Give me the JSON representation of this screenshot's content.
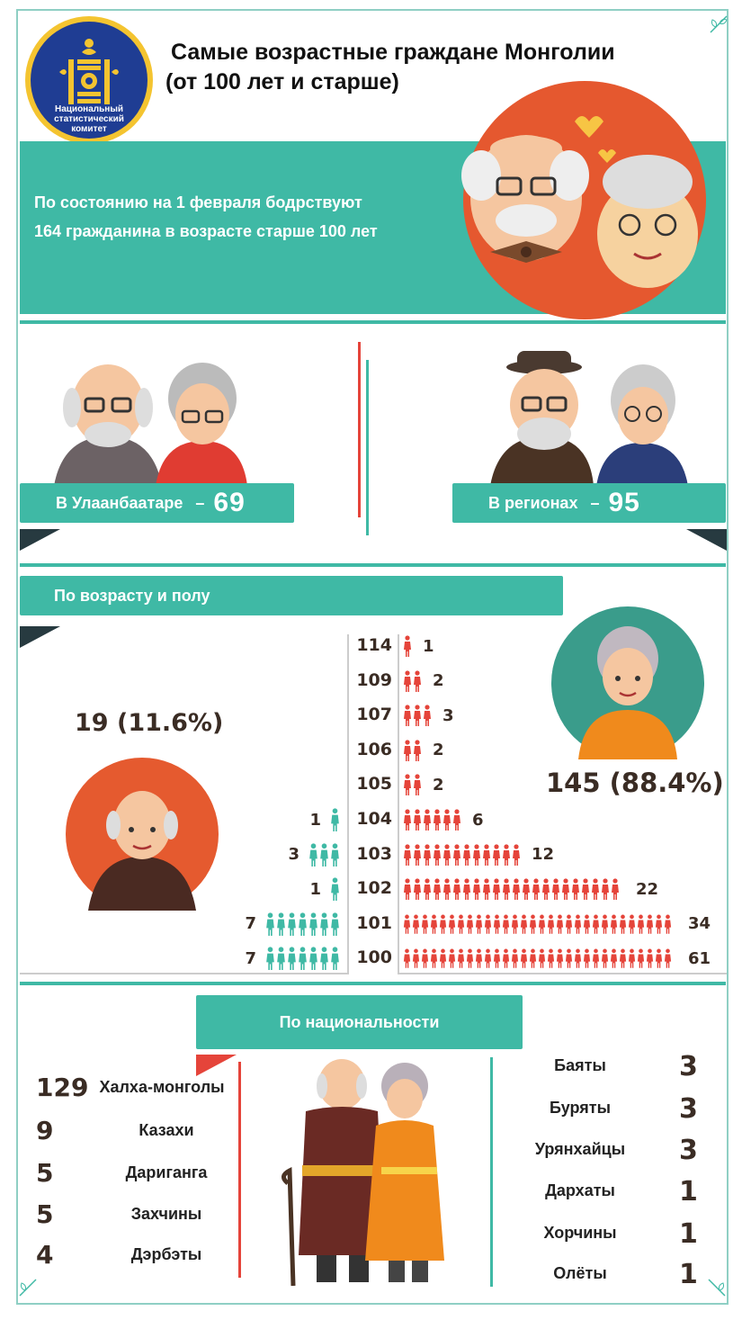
{
  "header": {
    "logo_text": "Национальный статистический комитет",
    "title_line1": "Самые возрастные граждане Монголии",
    "title_line2": "(от 100 лет и старше)"
  },
  "banner": {
    "line1": "По состоянию на 1 февраля бодрствуют",
    "line2": "164 гражданина в возрасте старше 100 лет"
  },
  "location": {
    "ub_label": "В Улаанбаатаре",
    "ub_value": "69",
    "dash": "–",
    "regions_label": "В регионах",
    "regions_value": "95"
  },
  "age_gender": {
    "section_title": "По возрасту и полу",
    "male_total": "19 (11.6%)",
    "female_total": "145 (88.4%)",
    "rows": [
      {
        "age": "114",
        "female": 1,
        "male": null
      },
      {
        "age": "109",
        "female": 2,
        "male": null
      },
      {
        "age": "107",
        "female": 3,
        "male": null
      },
      {
        "age": "106",
        "female": 2,
        "male": null
      },
      {
        "age": "105",
        "female": 2,
        "male": null
      },
      {
        "age": "104",
        "female": 6,
        "male": 1
      },
      {
        "age": "103",
        "female": 12,
        "male": 3
      },
      {
        "age": "102",
        "female": 22,
        "male": 1
      },
      {
        "age": "101",
        "female": 34,
        "male": 7
      },
      {
        "age": "100",
        "female": 61,
        "male": 7
      }
    ]
  },
  "nationality": {
    "section_title": "По национальности",
    "left": [
      {
        "num": "129",
        "name": "Халха-монголы"
      },
      {
        "num": "9",
        "name": "Казахи"
      },
      {
        "num": "5",
        "name": "Дариганга"
      },
      {
        "num": "5",
        "name": "Захчины"
      },
      {
        "num": "4",
        "name": "Дэрбэты"
      }
    ],
    "right": [
      {
        "name": "Баяты",
        "num": "3"
      },
      {
        "name": "Буряты",
        "num": "3"
      },
      {
        "name": "Урянхайцы",
        "num": "3"
      },
      {
        "name": "Дархаты",
        "num": "1"
      },
      {
        "name": "Хорчины",
        "num": "1"
      },
      {
        "name": "Олёты",
        "num": "1"
      }
    ]
  },
  "colors": {
    "teal": "#3fb9a5",
    "red": "#e5443a",
    "brown": "#3a2c24",
    "logo_blue": "#1f3d93"
  }
}
